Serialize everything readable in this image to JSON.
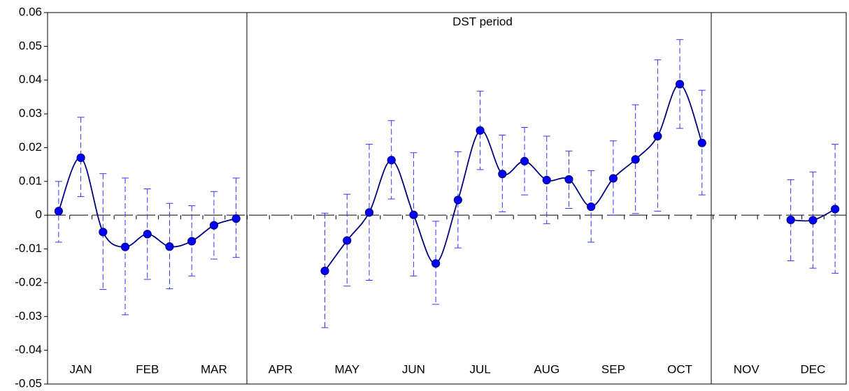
{
  "chart_data": {
    "type": "line",
    "annotation": "DST period",
    "categories": [
      null,
      "JAN",
      null,
      null,
      "FEB",
      null,
      null,
      "MAR",
      null,
      null,
      "APR",
      null,
      null,
      "MAY",
      null,
      null,
      "JUN",
      null,
      null,
      "JUL",
      null,
      null,
      "AUG",
      null,
      null,
      "SEP",
      null,
      null,
      "OCT",
      null,
      null,
      "NOV",
      null,
      null,
      "DEC",
      null
    ],
    "values": [
      0.0012,
      0.017,
      -0.005,
      -0.0094,
      -0.0056,
      -0.0093,
      -0.0077,
      -0.003,
      -0.001,
      null,
      null,
      null,
      -0.0165,
      -0.0075,
      0.0008,
      0.0163,
      0.0001,
      -0.0143,
      0.0045,
      0.0251,
      0.0122,
      0.016,
      0.0104,
      0.0106,
      0.0025,
      0.0109,
      0.0165,
      0.0234,
      0.0388,
      0.0214,
      null,
      null,
      null,
      -0.0014,
      -0.0015,
      0.0018
    ],
    "upper": [
      0.01,
      0.029,
      0.0123,
      0.011,
      0.0078,
      0.0035,
      0.0028,
      0.007,
      0.011,
      null,
      null,
      null,
      0.0006,
      0.0062,
      0.021,
      0.028,
      0.0185,
      -0.0018,
      0.0188,
      0.0367,
      0.0237,
      0.026,
      0.0234,
      0.019,
      0.0132,
      0.022,
      0.0327,
      0.046,
      0.052,
      0.037,
      null,
      null,
      null,
      0.0105,
      0.0128,
      0.021
    ],
    "lower": [
      -0.008,
      0.0055,
      -0.022,
      -0.0295,
      -0.019,
      -0.0218,
      -0.018,
      -0.013,
      -0.0125,
      null,
      null,
      null,
      -0.0333,
      -0.021,
      -0.0193,
      0.0048,
      -0.018,
      -0.0264,
      -0.0097,
      0.0135,
      0.001,
      0.006,
      -0.0025,
      0.002,
      -0.008,
      0.0,
      0.0005,
      0.0012,
      0.0257,
      0.006,
      null,
      null,
      null,
      -0.0135,
      -0.0157,
      -0.0172
    ],
    "line_color": "#000080",
    "marker_color": "#0000ff",
    "error_color": "#3333ff",
    "ylim": [
      -0.05,
      0.06
    ],
    "yticks": [
      -0.05,
      -0.04,
      -0.03,
      -0.02,
      -0.01,
      0,
      0.01,
      0.02,
      0.03,
      0.04,
      0.05,
      0.06
    ]
  }
}
